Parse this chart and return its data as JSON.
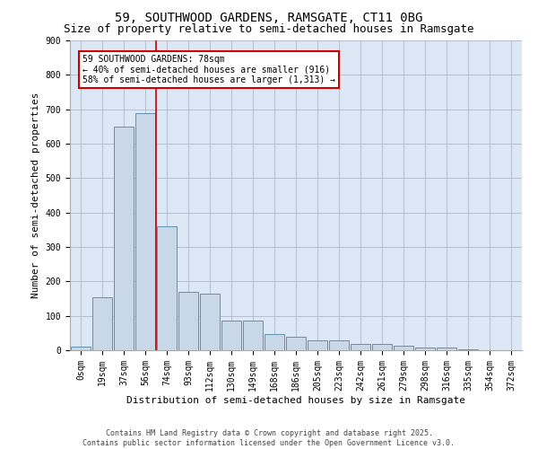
{
  "title1": "59, SOUTHWOOD GARDENS, RAMSGATE, CT11 0BG",
  "title2": "Size of property relative to semi-detached houses in Ramsgate",
  "xlabel": "Distribution of semi-detached houses by size in Ramsgate",
  "ylabel": "Number of semi-detached properties",
  "footnote": "Contains HM Land Registry data © Crown copyright and database right 2025.\nContains public sector information licensed under the Open Government Licence v3.0.",
  "bar_labels": [
    "0sqm",
    "19sqm",
    "37sqm",
    "56sqm",
    "74sqm",
    "93sqm",
    "112sqm",
    "130sqm",
    "149sqm",
    "168sqm",
    "186sqm",
    "205sqm",
    "223sqm",
    "242sqm",
    "261sqm",
    "279sqm",
    "298sqm",
    "316sqm",
    "335sqm",
    "354sqm",
    "372sqm"
  ],
  "bar_values": [
    10,
    155,
    650,
    690,
    360,
    170,
    165,
    85,
    85,
    48,
    40,
    30,
    30,
    17,
    17,
    13,
    8,
    8,
    3,
    0,
    0
  ],
  "bar_color": "#c8d8e8",
  "bar_edge_color": "#6090b0",
  "vline_color": "#cc0000",
  "property_line_label": "59 SOUTHWOOD GARDENS: 78sqm",
  "smaller_pct": "40%",
  "smaller_count": "916",
  "larger_pct": "58%",
  "larger_count": "1,313",
  "annotation_box_color": "#cc0000",
  "ylim": [
    0,
    900
  ],
  "yticks": [
    0,
    100,
    200,
    300,
    400,
    500,
    600,
    700,
    800,
    900
  ],
  "background_color": "#ffffff",
  "grid_color": "#b0b8c8",
  "title1_fontsize": 10,
  "title2_fontsize": 9,
  "axis_label_fontsize": 8,
  "tick_fontsize": 7,
  "annotation_fontsize": 7,
  "footnote_fontsize": 6
}
